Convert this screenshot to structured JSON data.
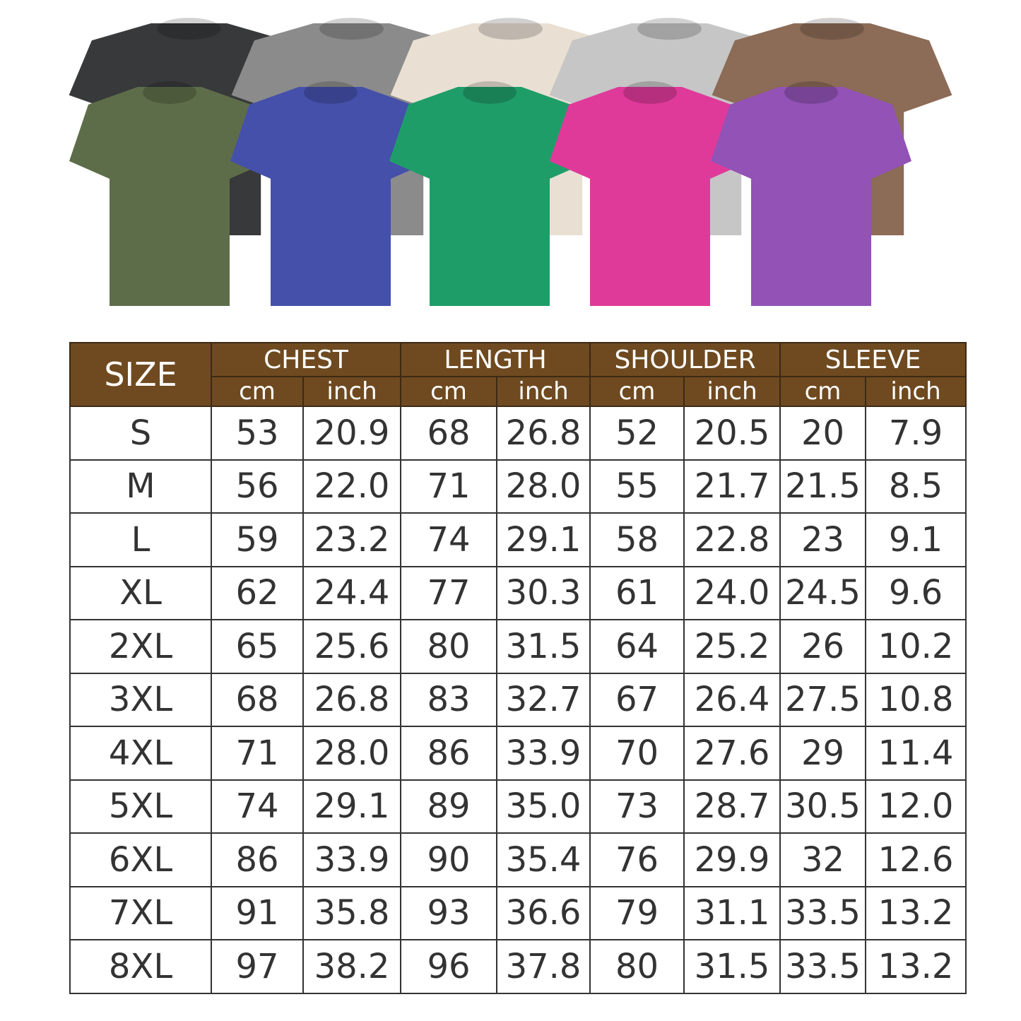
{
  "shirts": {
    "back_row": [
      {
        "color": "#38393a"
      },
      {
        "color": "#8b8b8b"
      },
      {
        "color": "#e9e0d3"
      },
      {
        "color": "#c6c6c6"
      },
      {
        "color": "#8c6b57"
      }
    ],
    "front_row": [
      {
        "color": "#5e6d49"
      },
      {
        "color": "#4550aa"
      },
      {
        "color": "#1f9d69"
      },
      {
        "color": "#df3a9a"
      },
      {
        "color": "#9252b6"
      }
    ]
  },
  "table": {
    "header_color": "#6f4a20",
    "size_label": "SIZE",
    "groups": [
      "CHEST",
      "LENGTH",
      "SHOULDER",
      "SLEEVE"
    ],
    "units": [
      "cm",
      "inch",
      "cm",
      "inch",
      "cm",
      "inch",
      "cm",
      "inch"
    ],
    "rows": [
      [
        "S",
        "53",
        "20.9",
        "68",
        "26.8",
        "52",
        "20.5",
        "20",
        "7.9"
      ],
      [
        "M",
        "56",
        "22.0",
        "71",
        "28.0",
        "55",
        "21.7",
        "21.5",
        "8.5"
      ],
      [
        "L",
        "59",
        "23.2",
        "74",
        "29.1",
        "58",
        "22.8",
        "23",
        "9.1"
      ],
      [
        "XL",
        "62",
        "24.4",
        "77",
        "30.3",
        "61",
        "24.0",
        "24.5",
        "9.6"
      ],
      [
        "2XL",
        "65",
        "25.6",
        "80",
        "31.5",
        "64",
        "25.2",
        "26",
        "10.2"
      ],
      [
        "3XL",
        "68",
        "26.8",
        "83",
        "32.7",
        "67",
        "26.4",
        "27.5",
        "10.8"
      ],
      [
        "4XL",
        "71",
        "28.0",
        "86",
        "33.9",
        "70",
        "27.6",
        "29",
        "11.4"
      ],
      [
        "5XL",
        "74",
        "29.1",
        "89",
        "35.0",
        "73",
        "28.7",
        "30.5",
        "12.0"
      ],
      [
        "6XL",
        "86",
        "33.9",
        "90",
        "35.4",
        "76",
        "29.9",
        "32",
        "12.6"
      ],
      [
        "7XL",
        "91",
        "35.8",
        "93",
        "36.6",
        "79",
        "31.1",
        "33.5",
        "13.2"
      ],
      [
        "8XL",
        "97",
        "38.2",
        "96",
        "37.8",
        "80",
        "31.5",
        "33.5",
        "13.2"
      ]
    ]
  }
}
